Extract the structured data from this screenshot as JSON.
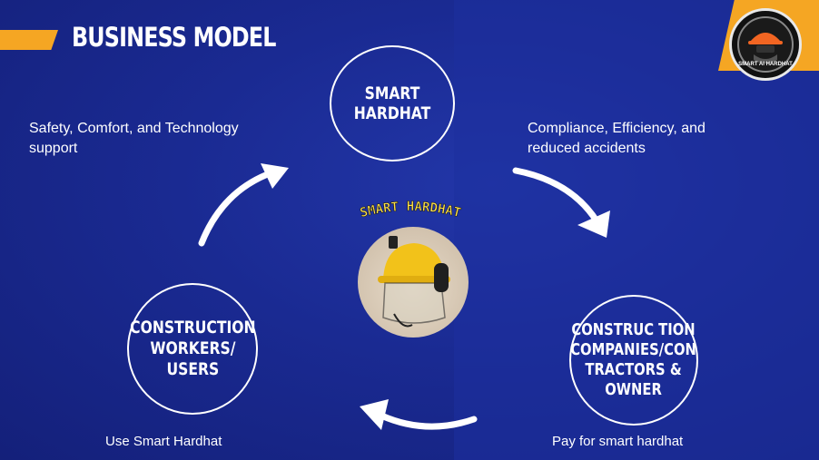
{
  "title": "BUSINESS MODEL",
  "logo": {
    "text": "SMART AI HARDHAT",
    "icon": "hardhat-worker-logo"
  },
  "nodes": {
    "top": "SMART HARDHAT",
    "left": "CONSTRUCTION\nWORKERS/\nUSERS",
    "right": "CONSTRUC TION\nCOMPANIES/CON\nTRACTORS &\nOWNER"
  },
  "captions": {
    "top_left": "Safety, Comfort, and Technology support",
    "top_right": "Compliance, Efficiency, and reduced accidents",
    "bottom_left": "Use Smart Hardhat",
    "bottom_right": "Pay for smart hardhat"
  },
  "center": {
    "label": "SMART HARDHAT",
    "image": "yellow-hardhat-with-visor"
  },
  "colors": {
    "background": "#1b2a8c",
    "accent": "#f5a623",
    "label_yellow": "#ffe24a"
  }
}
